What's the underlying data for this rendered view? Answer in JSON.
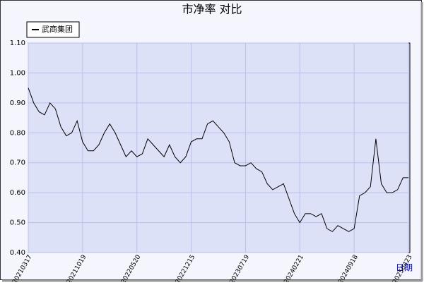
{
  "chart_data": {
    "type": "line",
    "title": "市净率  对比",
    "x_label": "日期",
    "categories": [
      "20210317",
      null,
      null,
      null,
      null,
      null,
      null,
      null,
      null,
      null,
      "20211019",
      null,
      null,
      null,
      null,
      null,
      null,
      null,
      null,
      null,
      "20220520",
      null,
      null,
      null,
      null,
      null,
      null,
      null,
      null,
      null,
      "20221215",
      null,
      null,
      null,
      null,
      null,
      null,
      null,
      null,
      null,
      "20230719",
      null,
      null,
      null,
      null,
      null,
      null,
      null,
      null,
      null,
      "20240221",
      null,
      null,
      null,
      null,
      null,
      null,
      null,
      null,
      null,
      "20240918",
      null,
      null,
      null,
      null,
      null,
      null,
      null,
      null,
      null,
      "20250423"
    ],
    "series": [
      {
        "name": "武商集团",
        "color": "#000000",
        "values": [
          0.95,
          0.9,
          0.87,
          0.86,
          0.9,
          0.88,
          0.82,
          0.79,
          0.8,
          0.84,
          0.77,
          0.74,
          0.74,
          0.76,
          0.8,
          0.83,
          0.8,
          0.76,
          0.72,
          0.74,
          0.72,
          0.73,
          0.78,
          0.76,
          0.74,
          0.72,
          0.76,
          0.72,
          0.7,
          0.72,
          0.77,
          0.78,
          0.78,
          0.83,
          0.84,
          0.82,
          0.8,
          0.77,
          0.7,
          0.69,
          0.69,
          0.7,
          0.68,
          0.67,
          0.63,
          0.61,
          0.62,
          0.63,
          0.58,
          0.53,
          0.5,
          0.53,
          0.53,
          0.52,
          0.53,
          0.48,
          0.47,
          0.49,
          0.48,
          0.47,
          0.48,
          0.59,
          0.6,
          0.62,
          0.78,
          0.63,
          0.6,
          0.6,
          0.61,
          0.65,
          0.65
        ]
      }
    ],
    "ylim": [
      0.4,
      1.1
    ],
    "yticks": [
      {
        "value": 0.4,
        "label": "0.40"
      },
      {
        "value": 0.5,
        "label": "0.50"
      },
      {
        "value": 0.6,
        "label": "0.60"
      },
      {
        "value": 0.7,
        "label": "0.70"
      },
      {
        "value": 0.8,
        "label": "0.80"
      },
      {
        "value": 0.9,
        "label": "0.90"
      },
      {
        "value": 1.0,
        "label": "1.00"
      },
      {
        "value": 1.1,
        "label": "1.10"
      }
    ],
    "grid": true,
    "legend": "top-left"
  }
}
